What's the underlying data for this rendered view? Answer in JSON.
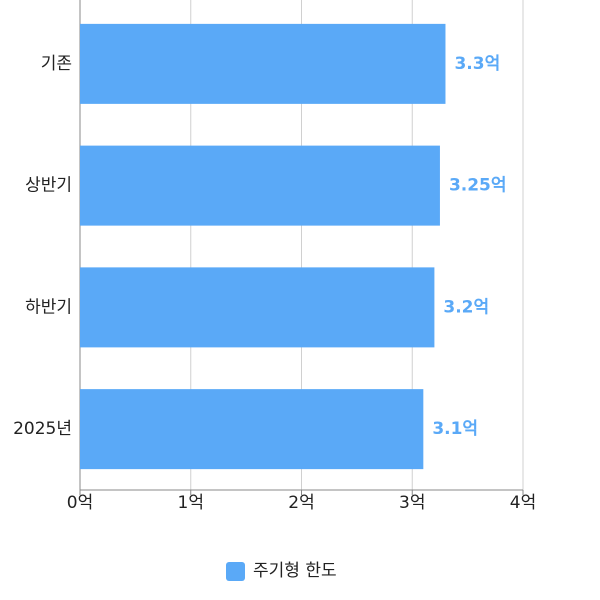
{
  "chart_data": {
    "type": "bar",
    "orientation": "horizontal",
    "categories": [
      "기존",
      "상반기",
      "하반기",
      "2025년"
    ],
    "series": [
      {
        "name": "주기형 한도",
        "color": "#5aa9f7",
        "values": [
          3.3,
          3.25,
          3.2,
          3.1
        ],
        "value_labels": [
          "3.3억",
          "3.25억",
          "3.2억",
          "3.1억"
        ]
      }
    ],
    "xlim": [
      0,
      4
    ],
    "xticks": [
      {
        "value": 0,
        "label": "0억"
      },
      {
        "value": 1,
        "label": "1억"
      },
      {
        "value": 2,
        "label": "2억"
      },
      {
        "value": 3,
        "label": "3억"
      },
      {
        "value": 4,
        "label": "4억"
      }
    ],
    "grid": true,
    "legend": "bottom"
  }
}
